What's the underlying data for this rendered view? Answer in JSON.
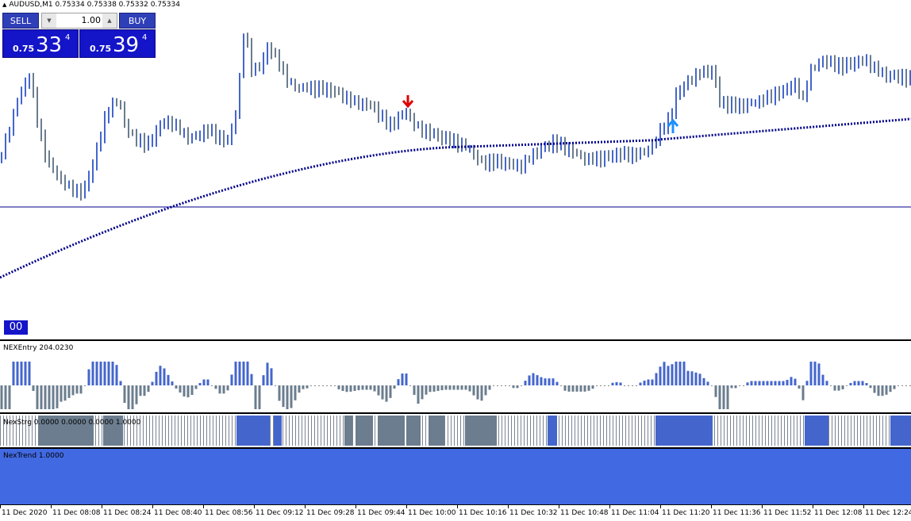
{
  "symbol_header": "AUDUSD,M1  0.75334 0.75338 0.75332 0.75334",
  "trade_panel": {
    "sell_label": "SELL",
    "buy_label": "BUY",
    "lot_value": "1.00",
    "sell_price": {
      "small": "0.75",
      "big": "33",
      "sup": "4"
    },
    "buy_price": {
      "small": "0.75",
      "big": "39",
      "sup": "4"
    }
  },
  "timer": "00",
  "indicators": {
    "entry_label": "NEXEntry 204.0230",
    "strength_label": "NexStrg 0.0000 0.0000 0.0000 1.0000",
    "trend_label": "NexTrend  1.0000"
  },
  "colors": {
    "bull": "#4466cc",
    "bear": "#6b7d8e",
    "ma": "#00008b",
    "trend_fill": "#4169e1",
    "sell_arrow": "#e00000",
    "buy_arrow": "#1e90ff"
  },
  "time_labels": [
    "11 Dec 2020",
    "11 Dec 08:08",
    "11 Dec 08:24",
    "11 Dec 08:40",
    "11 Dec 08:56",
    "11 Dec 09:12",
    "11 Dec 09:28",
    "11 Dec 09:44",
    "11 Dec 10:00",
    "11 Dec 10:16",
    "11 Dec 10:32",
    "11 Dec 10:48",
    "11 Dec 11:04",
    "11 Dec 11:20",
    "11 Dec 11:36",
    "11 Dec 11:52",
    "11 Dec 12:08",
    "11 Dec 12:24"
  ]
}
